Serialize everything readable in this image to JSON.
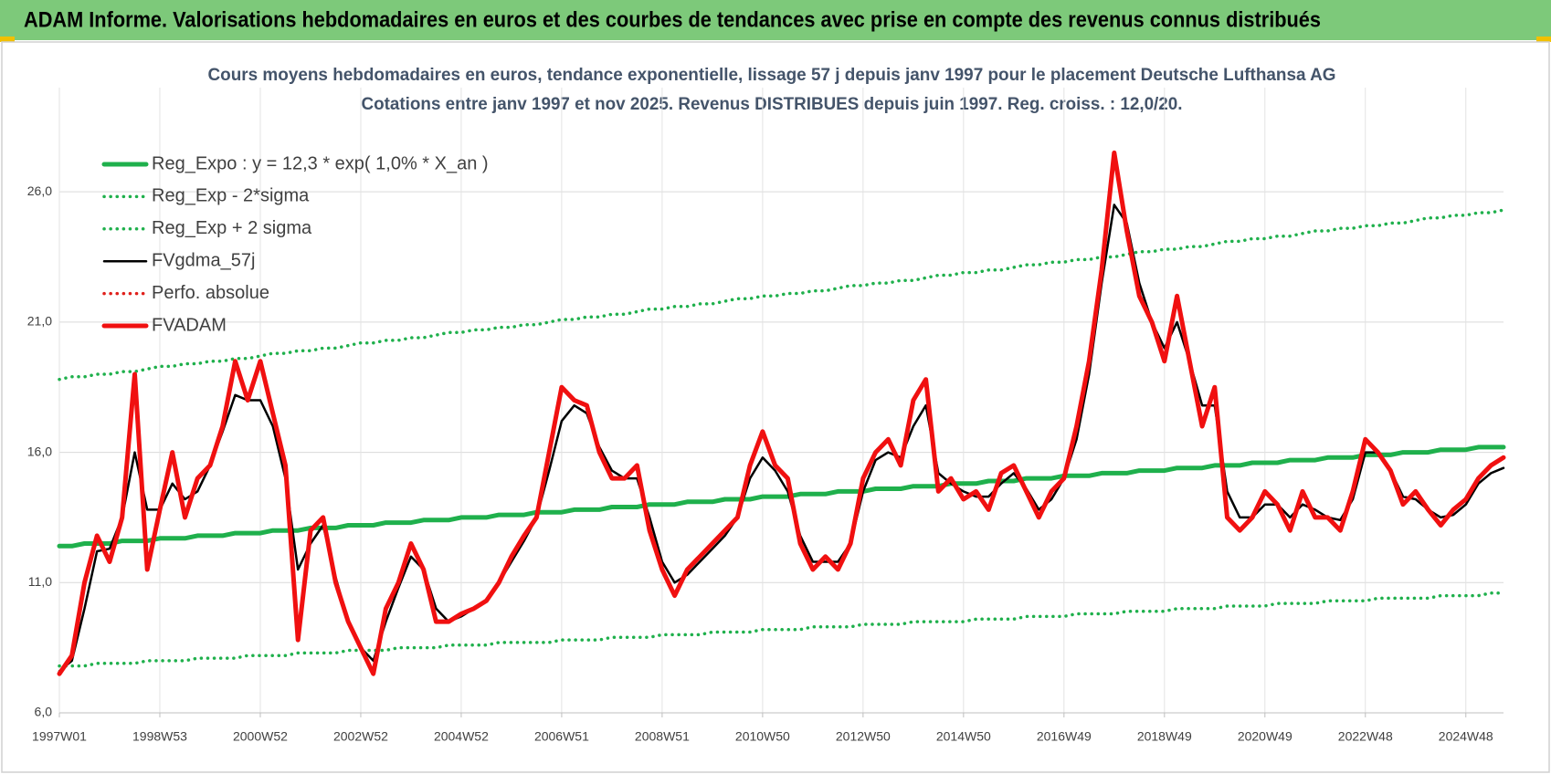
{
  "header": {
    "title": "ADAM Informe. Valorisations hebdomadaires en euros et des courbes de tendances avec prise en compte des revenus connus distribués"
  },
  "chart_data": {
    "type": "line",
    "title": "Cours moyens hebdomadaires en euros, tendance exponentielle, lissage 57 j depuis janv 1997 pour le placement Deutsche Lufthansa AG",
    "subtitle": "Cotations entre janv 1997 et nov 2025. Revenus DISTRIBUES depuis juin 1997. Reg. croiss. : 12,0/20.",
    "categories": [
      "1997W01",
      null,
      null,
      null,
      null,
      null,
      null,
      null,
      "1998W53",
      null,
      null,
      null,
      null,
      null,
      null,
      null,
      "2000W52",
      null,
      null,
      null,
      null,
      null,
      null,
      null,
      "2002W52",
      null,
      null,
      null,
      null,
      null,
      null,
      null,
      "2004W52",
      null,
      null,
      null,
      null,
      null,
      null,
      null,
      "2006W51",
      null,
      null,
      null,
      null,
      null,
      null,
      null,
      "2008W51",
      null,
      null,
      null,
      null,
      null,
      null,
      null,
      "2010W50",
      null,
      null,
      null,
      null,
      null,
      null,
      null,
      "2012W50",
      null,
      null,
      null,
      null,
      null,
      null,
      null,
      "2014W50",
      null,
      null,
      null,
      null,
      null,
      null,
      null,
      "2016W49",
      null,
      null,
      null,
      null,
      null,
      null,
      null,
      "2018W49",
      null,
      null,
      null,
      null,
      null,
      null,
      null,
      "2020W49",
      null,
      null,
      null,
      null,
      null,
      null,
      null,
      "2022W48",
      null,
      null,
      null,
      null,
      null,
      null,
      null,
      "2024W48",
      null,
      null,
      null
    ],
    "ylim": [
      6,
      30
    ],
    "yticks": [
      {
        "value": 6,
        "label": "6,0"
      },
      {
        "value": 11,
        "label": "11,0"
      },
      {
        "value": 16,
        "label": "16,0"
      },
      {
        "value": 21,
        "label": "21,0"
      },
      {
        "value": 26,
        "label": "26,0"
      }
    ],
    "grid": true,
    "legend": "top-left",
    "series": [
      {
        "name": "Reg_Expo : y = 12,3 * exp( 1,0% *  X_an )",
        "color": "#1fb04c",
        "style": "thick",
        "values": [
          12.4,
          12.4,
          12.5,
          12.5,
          12.5,
          12.6,
          12.6,
          12.6,
          12.7,
          12.7,
          12.7,
          12.8,
          12.8,
          12.8,
          12.9,
          12.9,
          12.9,
          13.0,
          13.0,
          13.0,
          13.1,
          13.1,
          13.1,
          13.2,
          13.2,
          13.2,
          13.3,
          13.3,
          13.3,
          13.4,
          13.4,
          13.4,
          13.5,
          13.5,
          13.5,
          13.6,
          13.6,
          13.6,
          13.7,
          13.7,
          13.7,
          13.8,
          13.8,
          13.8,
          13.9,
          13.9,
          13.9,
          14.0,
          14.0,
          14.0,
          14.1,
          14.1,
          14.1,
          14.2,
          14.2,
          14.2,
          14.3,
          14.3,
          14.3,
          14.4,
          14.4,
          14.4,
          14.5,
          14.5,
          14.5,
          14.6,
          14.6,
          14.6,
          14.7,
          14.7,
          14.7,
          14.8,
          14.8,
          14.8,
          14.9,
          14.9,
          14.9,
          15.0,
          15.0,
          15.0,
          15.1,
          15.1,
          15.1,
          15.2,
          15.2,
          15.2,
          15.3,
          15.3,
          15.3,
          15.4,
          15.4,
          15.4,
          15.5,
          15.5,
          15.5,
          15.6,
          15.6,
          15.6,
          15.7,
          15.7,
          15.7,
          15.8,
          15.8,
          15.8,
          15.9,
          15.9,
          15.9,
          16.0,
          16.0,
          16.0,
          16.1,
          16.1,
          16.1,
          16.2,
          16.2,
          16.2
        ]
      },
      {
        "name": "Reg_Exp - 2*sigma",
        "color": "#1fb04c",
        "style": "dotted",
        "values": [
          7.8,
          7.8,
          7.8,
          7.9,
          7.9,
          7.9,
          7.9,
          8.0,
          8.0,
          8.0,
          8.0,
          8.1,
          8.1,
          8.1,
          8.1,
          8.2,
          8.2,
          8.2,
          8.2,
          8.3,
          8.3,
          8.3,
          8.3,
          8.4,
          8.4,
          8.4,
          8.4,
          8.5,
          8.5,
          8.5,
          8.5,
          8.6,
          8.6,
          8.6,
          8.6,
          8.7,
          8.7,
          8.7,
          8.7,
          8.7,
          8.8,
          8.8,
          8.8,
          8.8,
          8.9,
          8.9,
          8.9,
          8.9,
          9.0,
          9.0,
          9.0,
          9.0,
          9.1,
          9.1,
          9.1,
          9.1,
          9.2,
          9.2,
          9.2,
          9.2,
          9.3,
          9.3,
          9.3,
          9.3,
          9.4,
          9.4,
          9.4,
          9.4,
          9.5,
          9.5,
          9.5,
          9.5,
          9.5,
          9.6,
          9.6,
          9.6,
          9.6,
          9.7,
          9.7,
          9.7,
          9.7,
          9.8,
          9.8,
          9.8,
          9.8,
          9.9,
          9.9,
          9.9,
          9.9,
          10.0,
          10.0,
          10.0,
          10.0,
          10.1,
          10.1,
          10.1,
          10.1,
          10.2,
          10.2,
          10.2,
          10.2,
          10.3,
          10.3,
          10.3,
          10.3,
          10.4,
          10.4,
          10.4,
          10.4,
          10.4,
          10.5,
          10.5,
          10.5,
          10.5,
          10.6,
          10.6
        ]
      },
      {
        "name": "Reg_Exp + 2 sigma",
        "color": "#1fb04c",
        "style": "dotted",
        "values": [
          18.8,
          18.9,
          18.9,
          19.0,
          19.0,
          19.1,
          19.1,
          19.2,
          19.3,
          19.3,
          19.4,
          19.4,
          19.5,
          19.5,
          19.6,
          19.6,
          19.7,
          19.8,
          19.8,
          19.9,
          19.9,
          20.0,
          20.0,
          20.1,
          20.2,
          20.2,
          20.3,
          20.3,
          20.4,
          20.4,
          20.5,
          20.6,
          20.6,
          20.7,
          20.7,
          20.8,
          20.8,
          20.9,
          20.9,
          21.0,
          21.1,
          21.1,
          21.2,
          21.2,
          21.3,
          21.3,
          21.4,
          21.5,
          21.5,
          21.6,
          21.6,
          21.7,
          21.7,
          21.8,
          21.9,
          21.9,
          22.0,
          22.0,
          22.1,
          22.1,
          22.2,
          22.2,
          22.3,
          22.4,
          22.4,
          22.5,
          22.5,
          22.6,
          22.6,
          22.7,
          22.8,
          22.8,
          22.9,
          22.9,
          23.0,
          23.0,
          23.1,
          23.2,
          23.2,
          23.3,
          23.3,
          23.4,
          23.4,
          23.5,
          23.5,
          23.6,
          23.7,
          23.7,
          23.8,
          23.8,
          23.9,
          23.9,
          24.0,
          24.1,
          24.1,
          24.2,
          24.2,
          24.3,
          24.3,
          24.4,
          24.5,
          24.5,
          24.6,
          24.6,
          24.7,
          24.7,
          24.8,
          24.8,
          24.9,
          25.0,
          25.0,
          25.1,
          25.1,
          25.2,
          25.2,
          25.3
        ]
      },
      {
        "name": "FVgdma_57j",
        "color": "#000000",
        "style": "solid",
        "values": [
          7.6,
          8.0,
          10.0,
          12.2,
          12.3,
          13.5,
          16.0,
          13.8,
          13.8,
          14.8,
          14.2,
          14.5,
          15.5,
          16.8,
          18.2,
          18.0,
          18.0,
          17.0,
          15.0,
          11.5,
          12.5,
          13.2,
          11.2,
          9.5,
          8.5,
          8.0,
          9.5,
          10.8,
          12.0,
          11.5,
          10.0,
          9.5,
          9.7,
          10.0,
          10.3,
          11.0,
          11.8,
          12.6,
          13.5,
          15.3,
          17.2,
          17.8,
          17.5,
          16.2,
          15.3,
          15.0,
          15.0,
          13.5,
          11.8,
          11.0,
          11.3,
          11.8,
          12.3,
          12.8,
          13.5,
          15.0,
          15.8,
          15.3,
          14.5,
          12.8,
          11.8,
          11.8,
          11.8,
          12.5,
          14.5,
          15.7,
          16.0,
          15.8,
          17.0,
          17.8,
          15.2,
          14.8,
          14.5,
          14.3,
          14.3,
          14.8,
          15.2,
          14.6,
          13.8,
          14.2,
          15.0,
          16.5,
          19.0,
          22.5,
          25.5,
          24.8,
          22.5,
          21.0,
          20.0,
          21.0,
          19.5,
          17.8,
          17.8,
          14.5,
          13.5,
          13.5,
          14.0,
          14.0,
          13.5,
          14.0,
          13.8,
          13.5,
          13.4,
          14.2,
          16.0,
          16.0,
          15.3,
          14.3,
          14.2,
          13.8,
          13.5,
          13.6,
          14.0,
          14.8,
          15.2,
          15.4
        ]
      },
      {
        "name": "Perfo. absolue",
        "color": "#e0201b",
        "style": "dotted",
        "values": [
          null,
          null,
          null,
          null,
          null,
          null,
          null,
          null,
          null,
          null,
          null,
          null,
          null,
          null,
          null,
          null,
          null,
          null,
          null,
          null,
          null,
          null,
          null,
          null,
          null,
          null,
          null,
          null,
          null,
          null,
          null,
          null,
          null,
          null,
          null,
          null,
          null,
          null,
          null,
          null,
          null,
          null,
          null,
          null,
          null,
          null,
          null,
          null,
          null,
          null,
          null,
          null,
          null,
          null,
          null,
          null,
          null,
          null,
          null,
          null,
          null,
          null,
          null,
          null,
          null,
          null,
          null,
          null,
          null,
          null,
          null,
          null,
          null,
          null,
          null,
          null,
          null,
          null,
          null,
          null,
          null,
          null,
          null,
          null,
          null,
          null,
          null,
          null,
          null,
          null,
          null,
          null,
          null,
          null,
          null,
          null,
          null,
          null,
          null,
          null,
          null,
          null,
          null,
          null,
          null,
          null,
          null,
          null,
          null,
          null,
          null,
          null,
          null,
          null,
          null,
          null
        ]
      },
      {
        "name": "FVADAM",
        "color": "#f01010",
        "style": "thick",
        "values": [
          7.5,
          8.2,
          11.0,
          12.8,
          11.8,
          13.5,
          19.0,
          11.5,
          13.8,
          16.0,
          13.5,
          15.0,
          15.5,
          17.0,
          19.5,
          18.0,
          19.5,
          17.5,
          15.5,
          8.8,
          13.0,
          13.5,
          11.0,
          9.5,
          8.5,
          7.5,
          10.0,
          11.0,
          12.5,
          11.5,
          9.5,
          9.5,
          9.8,
          10.0,
          10.3,
          11.0,
          12.0,
          12.8,
          13.5,
          16.0,
          18.5,
          18.0,
          17.8,
          16.0,
          15.0,
          15.0,
          15.5,
          13.0,
          11.5,
          10.5,
          11.5,
          12.0,
          12.5,
          13.0,
          13.5,
          15.5,
          16.8,
          15.5,
          15.0,
          12.5,
          11.5,
          12.0,
          11.5,
          12.5,
          15.0,
          16.0,
          16.5,
          15.5,
          18.0,
          18.8,
          14.5,
          15.0,
          14.2,
          14.5,
          13.8,
          15.2,
          15.5,
          14.5,
          13.5,
          14.5,
          15.0,
          17.0,
          19.5,
          23.0,
          27.5,
          24.5,
          22.0,
          21.0,
          19.5,
          22.0,
          19.5,
          17.0,
          18.5,
          13.5,
          13.0,
          13.5,
          14.5,
          14.0,
          13.0,
          14.5,
          13.5,
          13.5,
          13.0,
          14.5,
          16.5,
          16.0,
          15.3,
          14.0,
          14.5,
          13.8,
          13.2,
          13.8,
          14.2,
          15.0,
          15.5,
          15.8
        ]
      }
    ]
  }
}
